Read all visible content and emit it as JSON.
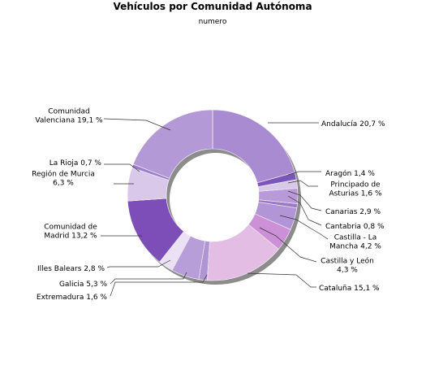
{
  "chart_data": {
    "type": "pie",
    "variant": "donut",
    "title": "Vehículos por Comunidad Autónoma",
    "subtitle": "numero",
    "unit": "%",
    "slices": [
      {
        "label": "Andalucía",
        "value": 20.7,
        "text": "Andalucía 20,7 %",
        "color": "#a98bd2"
      },
      {
        "label": "Aragón",
        "value": 1.4,
        "text": "Aragón 1,4 %",
        "color": "#7b56ba"
      },
      {
        "label": "Principado de Asturias",
        "value": 1.6,
        "text": "Principado de|Asturias 1,6 %",
        "color": "#d8c8ea"
      },
      {
        "label": "Canarias",
        "value": 2.9,
        "text": "Canarias 2,9 %",
        "color": "#b89ad8"
      },
      {
        "label": "Cantabria",
        "value": 0.8,
        "text": "Cantabria 0,8 %",
        "color": "#9a7ac8"
      },
      {
        "label": "Castilla - La Mancha",
        "value": 4.2,
        "text": "Castilla - La|Mancha 4,2 %",
        "color": "#b195d6"
      },
      {
        "label": "Castilla y León",
        "value": 4.3,
        "text": "Castilla y León|4,3 %",
        "color": "#cb90d6"
      },
      {
        "label": "Cataluña",
        "value": 15.1,
        "text": "Cataluña 15,1 %",
        "color": "#e3bde3"
      },
      {
        "label": "Extremadura",
        "value": 1.6,
        "text": "Extremadura 1,6 %",
        "color": "#b095d4"
      },
      {
        "label": "Galicia",
        "value": 5.3,
        "text": "Galicia 5,3 %",
        "color": "#b79ed8"
      },
      {
        "label": "Illes Balears",
        "value": 2.8,
        "text": "Illes Balears 2,8 %",
        "color": "#ece1f4"
      },
      {
        "label": "Comunidad de Madrid",
        "value": 13.2,
        "text": "Comunidad de|Madrid 13,2 %",
        "color": "#7d4db8"
      },
      {
        "label": "Región de Murcia",
        "value": 6.3,
        "text": "Región de Murcia|6,3 %",
        "color": "#d9c8ea"
      },
      {
        "label": "La Rioja",
        "value": 0.7,
        "text": "La Rioja 0,7 %",
        "color": "#9b7fca"
      },
      {
        "label": "Comunidad Valenciana",
        "value": 19.1,
        "text": "Comunidad|Valenciana 19,1 %",
        "color": "#b39ad6"
      }
    ]
  }
}
